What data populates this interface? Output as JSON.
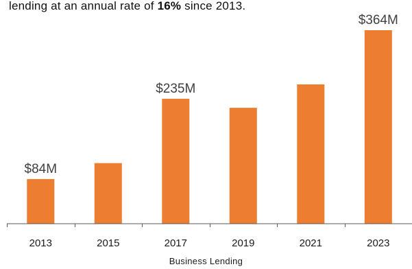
{
  "caption": {
    "text_before": "lending at an annual rate of ",
    "text_bold": "16%",
    "text_after": " since 2013."
  },
  "colors": {
    "bar": "#ED7D31",
    "axis": "#595959",
    "label": "#404040"
  },
  "chart_data": {
    "type": "bar",
    "categories": [
      "2013",
      "2015",
      "2017",
      "2019",
      "2021",
      "2023"
    ],
    "values": [
      84,
      114,
      235,
      218,
      262,
      364
    ],
    "data_labels": [
      "$84M",
      "",
      "$235M",
      "",
      "",
      "$364M"
    ],
    "xlabel": "Business Lending",
    "ylabel": "",
    "ylim": [
      0,
      364
    ],
    "grid": false,
    "legend": "none"
  }
}
